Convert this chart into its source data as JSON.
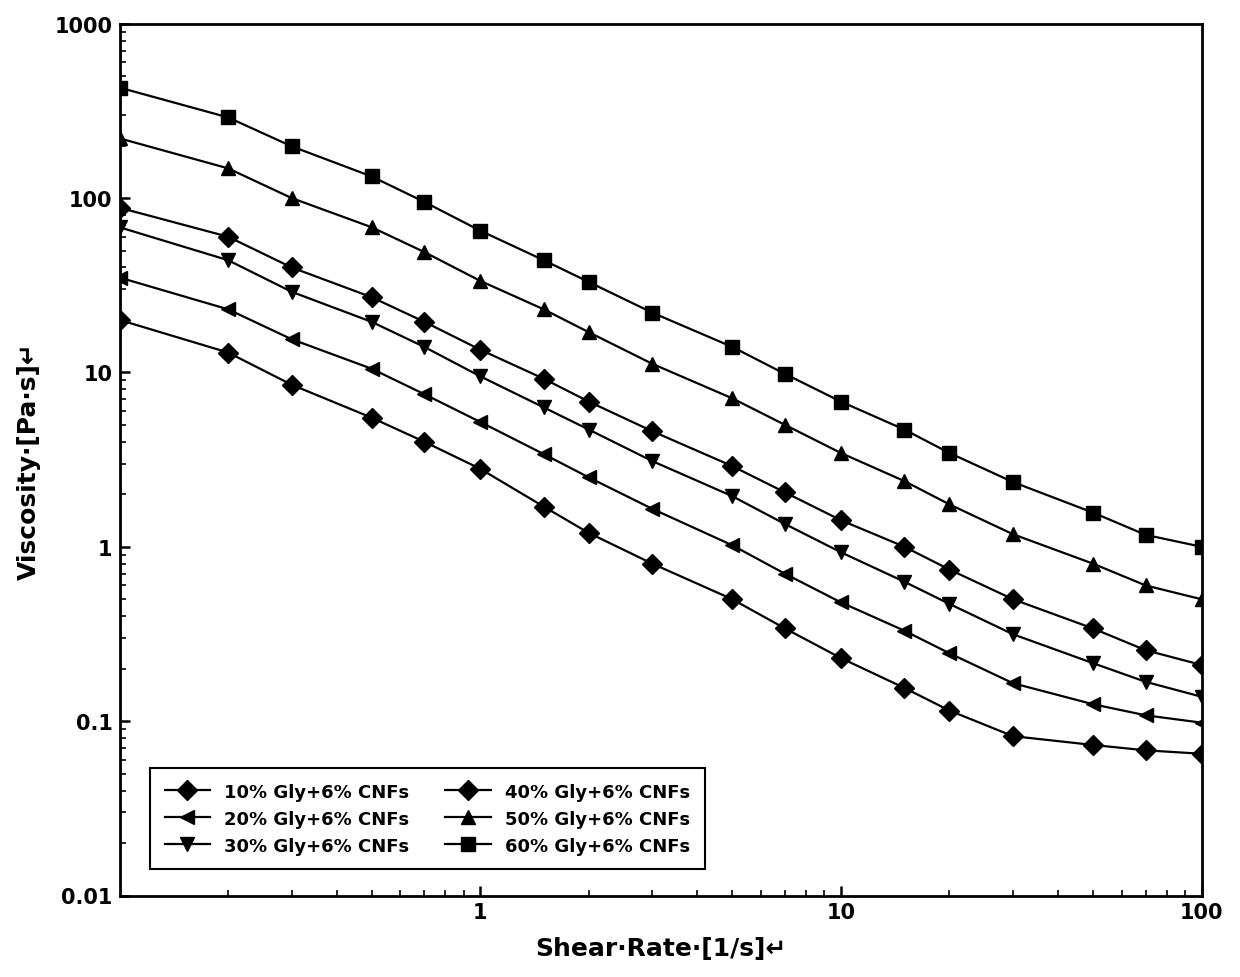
{
  "title": "",
  "xlabel": "Shear·Rate·[1/s]↵",
  "ylabel": "Viscosity·[Pa·s]↵",
  "xlim": [
    0.1,
    100
  ],
  "ylim": [
    0.01,
    1000
  ],
  "series": [
    {
      "label": "10% Gly+6% CNFs",
      "marker": "D",
      "x": [
        0.1,
        0.2,
        0.3,
        0.5,
        0.7,
        1.0,
        1.5,
        2.0,
        3.0,
        5.0,
        7.0,
        10.0,
        15.0,
        20.0,
        30.0,
        50.0,
        70.0,
        100.0
      ],
      "y": [
        20.0,
        13.0,
        8.5,
        5.5,
        4.0,
        2.8,
        1.7,
        1.2,
        0.8,
        0.5,
        0.34,
        0.23,
        0.155,
        0.115,
        0.082,
        0.073,
        0.068,
        0.065
      ]
    },
    {
      "label": "20% Gly+6% CNFs",
      "marker": "<",
      "x": [
        0.1,
        0.2,
        0.3,
        0.5,
        0.7,
        1.0,
        1.5,
        2.0,
        3.0,
        5.0,
        7.0,
        10.0,
        15.0,
        20.0,
        30.0,
        50.0,
        70.0,
        100.0
      ],
      "y": [
        35.0,
        23.0,
        15.5,
        10.5,
        7.5,
        5.2,
        3.4,
        2.5,
        1.65,
        1.02,
        0.7,
        0.48,
        0.33,
        0.245,
        0.165,
        0.125,
        0.108,
        0.098
      ]
    },
    {
      "label": "30% Gly+6% CNFs",
      "marker": "v",
      "x": [
        0.1,
        0.2,
        0.3,
        0.5,
        0.7,
        1.0,
        1.5,
        2.0,
        3.0,
        5.0,
        7.0,
        10.0,
        15.0,
        20.0,
        30.0,
        50.0,
        70.0,
        100.0
      ],
      "y": [
        68.0,
        44.0,
        29.0,
        19.5,
        14.0,
        9.5,
        6.3,
        4.7,
        3.1,
        1.95,
        1.35,
        0.93,
        0.63,
        0.47,
        0.315,
        0.215,
        0.168,
        0.138
      ]
    },
    {
      "label": "40% Gly+6% CNFs",
      "marker": "D",
      "x": [
        0.1,
        0.2,
        0.3,
        0.5,
        0.7,
        1.0,
        1.5,
        2.0,
        3.0,
        5.0,
        7.0,
        10.0,
        15.0,
        20.0,
        30.0,
        50.0,
        70.0,
        100.0
      ],
      "y": [
        88.0,
        60.0,
        40.0,
        27.0,
        19.5,
        13.5,
        9.2,
        6.8,
        4.6,
        2.9,
        2.05,
        1.42,
        1.0,
        0.74,
        0.5,
        0.34,
        0.255,
        0.21
      ]
    },
    {
      "label": "50% Gly+6% CNFs",
      "marker": "^",
      "x": [
        0.1,
        0.2,
        0.3,
        0.5,
        0.7,
        1.0,
        1.5,
        2.0,
        3.0,
        5.0,
        7.0,
        10.0,
        15.0,
        20.0,
        30.0,
        50.0,
        70.0,
        100.0
      ],
      "y": [
        220.0,
        148.0,
        100.0,
        68.0,
        49.0,
        33.5,
        23.0,
        17.0,
        11.2,
        7.1,
        5.0,
        3.45,
        2.38,
        1.75,
        1.18,
        0.8,
        0.6,
        0.5
      ]
    },
    {
      "label": "60% Gly+6% CNFs",
      "marker": "s",
      "x": [
        0.1,
        0.2,
        0.3,
        0.5,
        0.7,
        1.0,
        1.5,
        2.0,
        3.0,
        5.0,
        7.0,
        10.0,
        15.0,
        20.0,
        30.0,
        50.0,
        70.0,
        100.0
      ],
      "y": [
        430.0,
        290.0,
        198.0,
        133.0,
        95.0,
        65.0,
        44.0,
        33.0,
        22.0,
        14.0,
        9.8,
        6.8,
        4.7,
        3.45,
        2.35,
        1.57,
        1.17,
        1.0
      ]
    }
  ],
  "line_color": "#000000",
  "marker_color": "#000000",
  "markersize": 10,
  "linewidth": 1.6,
  "legend_fontsize": 13,
  "axis_label_fontsize": 18,
  "tick_label_fontsize": 15,
  "background_color": "#ffffff",
  "ytick_labels": [
    "0.01",
    "0.1",
    "1",
    "10",
    "100",
    "1000"
  ],
  "ytick_values": [
    0.01,
    0.1,
    1,
    10,
    100,
    1000
  ],
  "xtick_labels": [
    "1",
    "10",
    "100"
  ],
  "xtick_values": [
    1,
    10,
    100
  ]
}
